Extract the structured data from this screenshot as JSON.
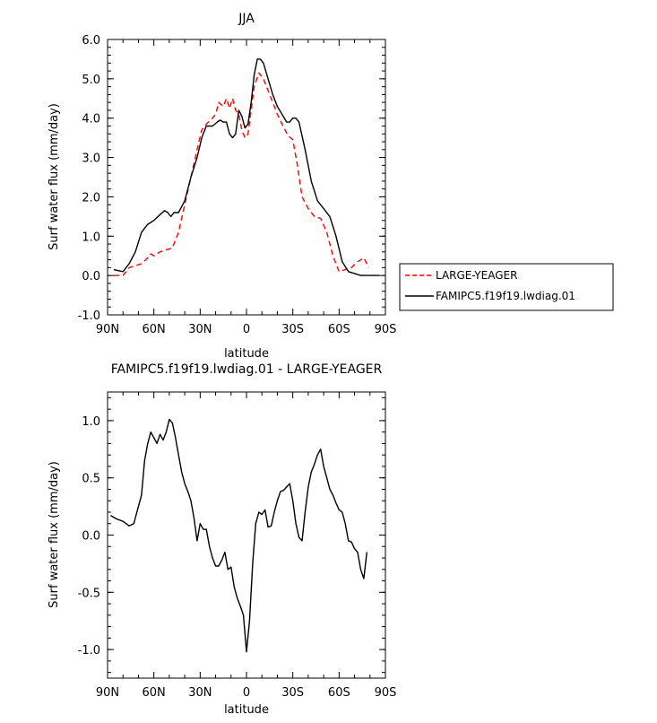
{
  "chart_data": [
    {
      "type": "line",
      "title": "JJA",
      "xlabel": "latitude",
      "ylabel": "Surf water flux (mm/day)",
      "xlim": [
        90,
        -90
      ],
      "ylim": [
        -1.0,
        6.0
      ],
      "xticks": [
        90,
        60,
        30,
        0,
        -30,
        -60,
        -90
      ],
      "xtick_labels": [
        "90N",
        "60N",
        "30N",
        "0",
        "30S",
        "60S",
        "90S"
      ],
      "yticks": [
        -1.0,
        0.0,
        1.0,
        2.0,
        3.0,
        4.0,
        5.0,
        6.0
      ],
      "ytick_labels": [
        "-1.0",
        "0.0",
        "1.0",
        "2.0",
        "3.0",
        "4.0",
        "5.0",
        "6.0"
      ],
      "legend_position": "outside-right",
      "series": [
        {
          "name": "LARGE-YEAGER",
          "color": "#ff0000",
          "dash": "dashed",
          "x": [
            86,
            80,
            76,
            72,
            68,
            64,
            62,
            60,
            56,
            52,
            48,
            44,
            40,
            36,
            32,
            29,
            26,
            22,
            20,
            18,
            15,
            13,
            11,
            9,
            7,
            5,
            3,
            1,
            -1,
            -3,
            -5,
            -8,
            -11,
            -14,
            -17,
            -20,
            -23,
            -27,
            -30,
            -33,
            -36,
            -40,
            -44,
            -48,
            -52,
            -56,
            -60,
            -64,
            -68,
            -72,
            -76,
            -78,
            -79
          ],
          "values": [
            0.0,
            0.0,
            0.2,
            0.25,
            0.3,
            0.45,
            0.55,
            0.5,
            0.6,
            0.65,
            0.7,
            1.1,
            1.8,
            2.5,
            3.2,
            3.7,
            3.85,
            4.0,
            4.1,
            4.4,
            4.3,
            4.5,
            4.25,
            4.5,
            4.2,
            4.1,
            3.7,
            3.5,
            3.6,
            4.2,
            4.8,
            5.15,
            5.0,
            4.7,
            4.4,
            4.1,
            3.85,
            3.55,
            3.45,
            2.8,
            2.0,
            1.7,
            1.5,
            1.45,
            1.1,
            0.5,
            0.1,
            0.15,
            0.2,
            0.35,
            0.45,
            0.3,
            0.2
          ]
        },
        {
          "name": "FAMIPC5.f19f19.lwdiag.01",
          "color": "#000000",
          "dash": "solid",
          "x": [
            86,
            80,
            76,
            72,
            68,
            64,
            60,
            56,
            53,
            51,
            49,
            47,
            44,
            40,
            36,
            32,
            29,
            26,
            22,
            19,
            17,
            15,
            13,
            11,
            9,
            7,
            5,
            3,
            1,
            -1,
            -3,
            -5,
            -7,
            -9,
            -11,
            -14,
            -17,
            -20,
            -23,
            -26,
            -28,
            -30,
            -32,
            -34,
            -38,
            -42,
            -46,
            -50,
            -54,
            -58,
            -62,
            -66,
            -70,
            -74,
            -80,
            -86
          ],
          "values": [
            0.15,
            0.1,
            0.3,
            0.6,
            1.1,
            1.3,
            1.4,
            1.55,
            1.65,
            1.6,
            1.5,
            1.6,
            1.6,
            1.9,
            2.5,
            3.0,
            3.5,
            3.8,
            3.8,
            3.9,
            3.95,
            3.9,
            3.9,
            3.6,
            3.5,
            3.6,
            4.2,
            4.05,
            3.75,
            3.85,
            4.4,
            5.1,
            5.5,
            5.5,
            5.4,
            5.0,
            4.6,
            4.3,
            4.1,
            3.9,
            3.9,
            4.0,
            4.0,
            3.9,
            3.2,
            2.4,
            1.9,
            1.7,
            1.5,
            1.0,
            0.35,
            0.1,
            0.05,
            0.0,
            0.0,
            0.0
          ]
        }
      ]
    },
    {
      "type": "line",
      "title": "FAMIPC5.f19f19.lwdiag.01 - LARGE-YEAGER",
      "xlabel": "latitude",
      "ylabel": "Surf water flux (mm/day)",
      "xlim": [
        90,
        -90
      ],
      "ylim": [
        -1.25,
        1.25
      ],
      "xticks": [
        90,
        60,
        30,
        0,
        -30,
        -60,
        -90
      ],
      "xtick_labels": [
        "90N",
        "60N",
        "30N",
        "0",
        "30S",
        "60S",
        "90S"
      ],
      "yticks": [
        -1.0,
        -0.5,
        0.0,
        0.5,
        1.0
      ],
      "ytick_labels": [
        "-1.0",
        "-0.5",
        "0.0",
        "0.5",
        "1.0"
      ],
      "series": [
        {
          "color": "#000000",
          "dash": "solid",
          "x": [
            88,
            84,
            80,
            78,
            76,
            73,
            71,
            68,
            66,
            64,
            62,
            60,
            58,
            56,
            54,
            52,
            50,
            48,
            46,
            44,
            42,
            40,
            38,
            36,
            34,
            32,
            30,
            28,
            26,
            24,
            22,
            20,
            18,
            16,
            14,
            12,
            10,
            8,
            6,
            4,
            2,
            0,
            -2,
            -4,
            -6,
            -8,
            -10,
            -12,
            -14,
            -16,
            -18,
            -20,
            -22,
            -24,
            -26,
            -28,
            -30,
            -32,
            -34,
            -36,
            -38,
            -40,
            -42,
            -44,
            -46,
            -48,
            -50,
            -52,
            -54,
            -56,
            -58,
            -60,
            -62,
            -64,
            -66,
            -68,
            -70,
            -72,
            -74,
            -76,
            -78
          ],
          "values": [
            0.17,
            0.14,
            0.12,
            0.1,
            0.08,
            0.1,
            0.2,
            0.35,
            0.65,
            0.8,
            0.9,
            0.85,
            0.8,
            0.88,
            0.83,
            0.9,
            1.01,
            0.98,
            0.85,
            0.7,
            0.55,
            0.45,
            0.38,
            0.3,
            0.15,
            -0.05,
            0.1,
            0.05,
            0.05,
            -0.1,
            -0.2,
            -0.27,
            -0.27,
            -0.22,
            -0.15,
            -0.3,
            -0.28,
            -0.45,
            -0.55,
            -0.62,
            -0.7,
            -1.02,
            -0.75,
            -0.25,
            0.1,
            0.2,
            0.18,
            0.22,
            0.07,
            0.08,
            0.2,
            0.3,
            0.38,
            0.39,
            0.42,
            0.45,
            0.3,
            0.1,
            -0.02,
            -0.05,
            0.2,
            0.42,
            0.55,
            0.62,
            0.7,
            0.75,
            0.6,
            0.5,
            0.4,
            0.35,
            0.28,
            0.22,
            0.2,
            0.1,
            -0.05,
            -0.06,
            -0.12,
            -0.15,
            -0.3,
            -0.38,
            -0.15
          ]
        }
      ]
    }
  ]
}
